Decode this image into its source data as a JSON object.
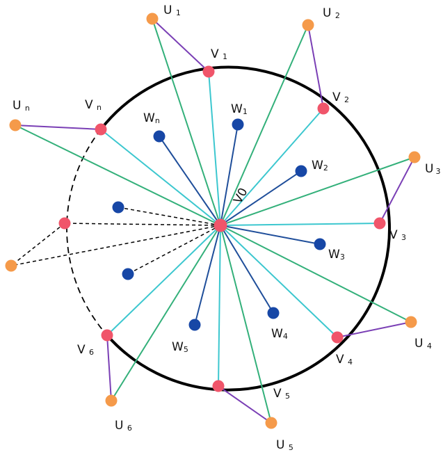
{
  "colors": {
    "circle": "#000000",
    "spoke_to_v": "#3cc7cf",
    "spoke_to_u": "#33b07a",
    "spoke_to_w": "#1f4e9a",
    "u_v_edge": "#7a3fb5",
    "dashed": "#000000",
    "center_node": "#f0556a",
    "v_node": "#f0556a",
    "u_node": "#f59a4a",
    "w_node": "#1747a6"
  },
  "labels": {
    "center": "V0",
    "v": [
      {
        "base": "V",
        "sub": "1"
      },
      {
        "base": "V",
        "sub": "2"
      },
      {
        "base": "V",
        "sub": "3"
      },
      {
        "base": "V",
        "sub": "4"
      },
      {
        "base": "V",
        "sub": "5"
      },
      {
        "base": "V",
        "sub": "6"
      },
      {
        "base": "V",
        "sub": "n"
      }
    ],
    "u": [
      {
        "base": "U",
        "sub": "1"
      },
      {
        "base": "U",
        "sub": "2"
      },
      {
        "base": "U",
        "sub": "3"
      },
      {
        "base": "U",
        "sub": "4"
      },
      {
        "base": "U",
        "sub": "5"
      },
      {
        "base": "U",
        "sub": "6"
      },
      {
        "base": "U",
        "sub": "n"
      }
    ],
    "w": [
      {
        "base": "W",
        "sub": "1"
      },
      {
        "base": "W",
        "sub": "2"
      },
      {
        "base": "W",
        "sub": "3"
      },
      {
        "base": "W",
        "sub": "4"
      },
      {
        "base": "W",
        "sub": "5"
      },
      {
        "base": "W",
        "sub": "n"
      }
    ]
  }
}
